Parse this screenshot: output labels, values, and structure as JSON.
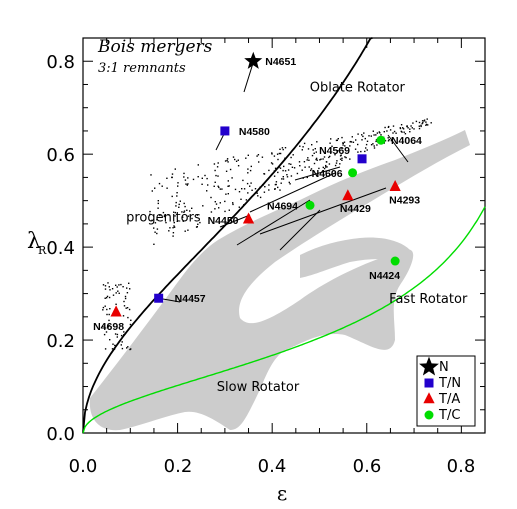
{
  "chart_data": {
    "type": "scatter",
    "xlabel": "ε",
    "ylabel_main": "λ",
    "ylabel_sub": "R",
    "xlim": [
      0.0,
      0.85
    ],
    "ylim": [
      0.0,
      0.85
    ],
    "xticks": [
      "0.0",
      "0.2",
      "0.4",
      "0.6",
      "0.8"
    ],
    "xtick_values": [
      0.0,
      0.2,
      0.4,
      0.6,
      0.8
    ],
    "yticks": [
      "0.0",
      "0.2",
      "0.4",
      "0.6",
      "0.8"
    ],
    "ytick_values": [
      0.0,
      0.2,
      0.4,
      0.6,
      0.8
    ],
    "title_line1": "Bois mergers",
    "title_line2": "3:1 remnants",
    "region_labels": [
      {
        "text": "Oblate Rotator",
        "x": 0.58,
        "y": 0.735
      },
      {
        "text": "progenitors",
        "x": 0.17,
        "y": 0.455
      },
      {
        "text": "Fast Rotator",
        "x": 0.73,
        "y": 0.28
      },
      {
        "text": "Slow Rotator",
        "x": 0.37,
        "y": 0.09
      }
    ],
    "series": [
      {
        "name": "N",
        "marker": "star",
        "color": "#000000",
        "points": [
          {
            "label": "N4651",
            "x": 0.36,
            "y": 0.8
          }
        ]
      },
      {
        "name": "T/N",
        "marker": "square",
        "color": "#2200cc",
        "points": [
          {
            "label": "N4580",
            "x": 0.3,
            "y": 0.65
          },
          {
            "label": "N4569",
            "x": 0.59,
            "y": 0.59
          },
          {
            "label": "N4457",
            "x": 0.16,
            "y": 0.29
          }
        ]
      },
      {
        "name": "T/A",
        "marker": "triangle",
        "color": "#e80000",
        "points": [
          {
            "label": "N4450",
            "x": 0.35,
            "y": 0.46
          },
          {
            "label": "N4429",
            "x": 0.56,
            "y": 0.51
          },
          {
            "label": "N4293",
            "x": 0.66,
            "y": 0.53
          },
          {
            "label": "N4698",
            "x": 0.07,
            "y": 0.26
          }
        ]
      },
      {
        "name": "T/C",
        "marker": "circle",
        "color": "#00dd00",
        "points": [
          {
            "label": "N4064",
            "x": 0.63,
            "y": 0.63
          },
          {
            "label": "N4606",
            "x": 0.57,
            "y": 0.56
          },
          {
            "label": "N4694",
            "x": 0.48,
            "y": 0.49
          },
          {
            "label": "N4424",
            "x": 0.66,
            "y": 0.37
          }
        ]
      }
    ],
    "curves": [
      {
        "name": "black-curve",
        "color": "#000000",
        "k": 0.31
      },
      {
        "name": "green-curve",
        "color": "#00dd00",
        "k": 0.31,
        "x_scale": 0.3
      }
    ],
    "legend": {
      "position": "bottom-right",
      "entries": [
        "N",
        "T/N",
        "T/A",
        "T/C"
      ]
    },
    "grid": false
  }
}
